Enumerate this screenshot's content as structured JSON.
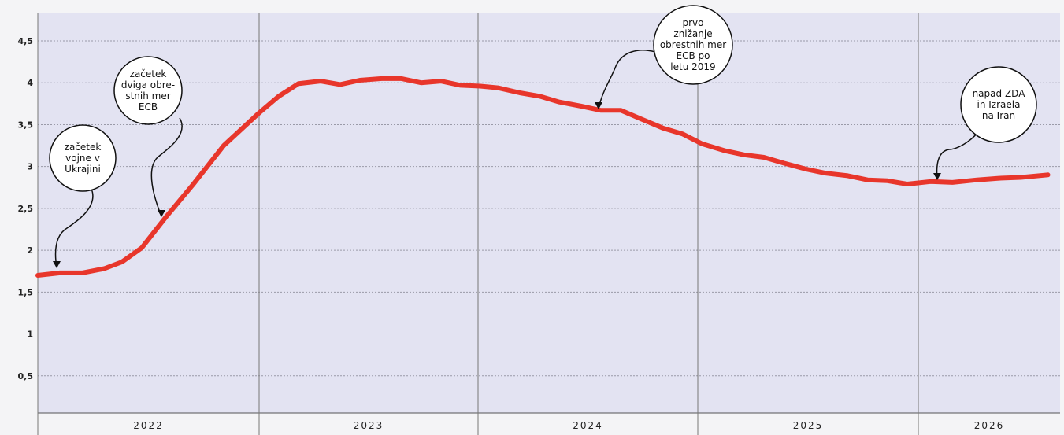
{
  "chart_data": {
    "type": "line",
    "title": "",
    "xlabel": "",
    "ylabel": "",
    "ylim": [
      0,
      4.5
    ],
    "y_ticks": [
      "0,5",
      "1",
      "1,5",
      "2",
      "2,5",
      "3",
      "3,5",
      "4",
      "4,5"
    ],
    "y_tick_values": [
      0.5,
      1,
      1.5,
      2,
      2.5,
      3,
      3.5,
      4,
      4.5
    ],
    "x_range": [
      2022.0,
      2026.58
    ],
    "years": [
      {
        "label": "2022",
        "start": 2022,
        "end": 2023
      },
      {
        "label": "2023",
        "start": 2023,
        "end": 2024
      },
      {
        "label": "2024",
        "start": 2024,
        "end": 2025
      },
      {
        "label": "2025",
        "start": 2025,
        "end": 2026
      },
      {
        "label": "2026",
        "start": 2026,
        "end": 2026.58
      }
    ],
    "grid": true,
    "colors": {
      "line": "#e8362b",
      "grid": "#9a9aa8",
      "plot_bg": "#e3e3f2",
      "page_bg": "#f4f4f6"
    },
    "series": [
      {
        "x": [
          2022.0,
          2022.1,
          2022.2,
          2022.3,
          2022.38,
          2022.47,
          2022.58,
          2022.7,
          2022.84,
          2023.0,
          2023.09,
          2023.18,
          2023.28,
          2023.37,
          2023.46,
          2023.56,
          2023.65,
          2023.74,
          2023.83,
          2023.92,
          2024.01,
          2024.09,
          2024.19,
          2024.28,
          2024.37,
          2024.47,
          2024.56,
          2024.65,
          2024.74,
          2024.84,
          2024.93,
          2025.02,
          2025.12,
          2025.21,
          2025.3,
          2025.39,
          2025.49,
          2025.58,
          2025.68,
          2025.77,
          2025.86,
          2025.95,
          2026.05,
          2026.14,
          2026.24,
          2026.33,
          2026.42,
          2026.53
        ],
        "y": [
          1.7,
          1.73,
          1.73,
          1.78,
          1.86,
          2.03,
          2.4,
          2.78,
          3.25,
          3.64,
          3.84,
          3.99,
          4.02,
          3.98,
          4.03,
          4.05,
          4.05,
          4.0,
          4.02,
          3.97,
          3.96,
          3.94,
          3.88,
          3.84,
          3.77,
          3.72,
          3.67,
          3.67,
          3.57,
          3.46,
          3.39,
          3.27,
          3.19,
          3.14,
          3.11,
          3.04,
          2.97,
          2.92,
          2.89,
          2.84,
          2.83,
          2.79,
          2.82,
          2.81,
          2.84,
          2.86,
          2.87,
          2.9
        ]
      }
    ],
    "annotations": [
      {
        "id": "ukraine",
        "lines": [
          "začetek",
          "vojne v",
          "Ukrajini"
        ],
        "target_x": 2022.08,
        "target_y": 1.73
      },
      {
        "id": "ecb-hike",
        "lines": [
          "začetek",
          "dviga obre-",
          "stnih mer",
          "ECB"
        ],
        "target_x": 2022.57,
        "target_y": 2.4
      },
      {
        "id": "ecb-cut",
        "lines": [
          "prvo",
          "znižanje",
          "obrestnih mer",
          "ECB po",
          "letu 2019"
        ],
        "target_x": 2024.56,
        "target_y": 3.67
      },
      {
        "id": "us-israel-iran",
        "lines": [
          "napad ZDA",
          "in Izraela",
          "na Iran"
        ],
        "target_x": 2026.08,
        "target_y": 2.81
      }
    ]
  }
}
